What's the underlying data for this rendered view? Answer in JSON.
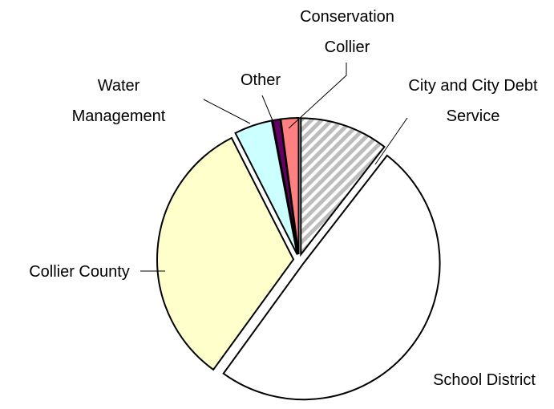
{
  "chart_data": {
    "type": "pie",
    "title": "",
    "start_angle_deg": 0,
    "direction": "clockwise",
    "slices": [
      {
        "label": [
          "City and City Debt",
          "Service"
        ],
        "value": 10.5,
        "color": "#c8c8c8",
        "pattern": "diagonal-stripes",
        "exploded": true
      },
      {
        "label": [
          "School District"
        ],
        "value": 49.5,
        "color": "#ffffff",
        "exploded": true
      },
      {
        "label": [
          "Collier County"
        ],
        "value": 32.5,
        "color": "#ffffcc",
        "exploded": true
      },
      {
        "label": [
          "Water",
          "Management"
        ],
        "value": 4.5,
        "color": "#ccffff",
        "exploded": true
      },
      {
        "label": [
          "Other"
        ],
        "value": 0.9,
        "color": "#660066",
        "exploded": true
      },
      {
        "label": [
          "Conservation",
          "Collier"
        ],
        "value": 2.1,
        "color": "#ff8080",
        "exploded": true
      }
    ]
  }
}
